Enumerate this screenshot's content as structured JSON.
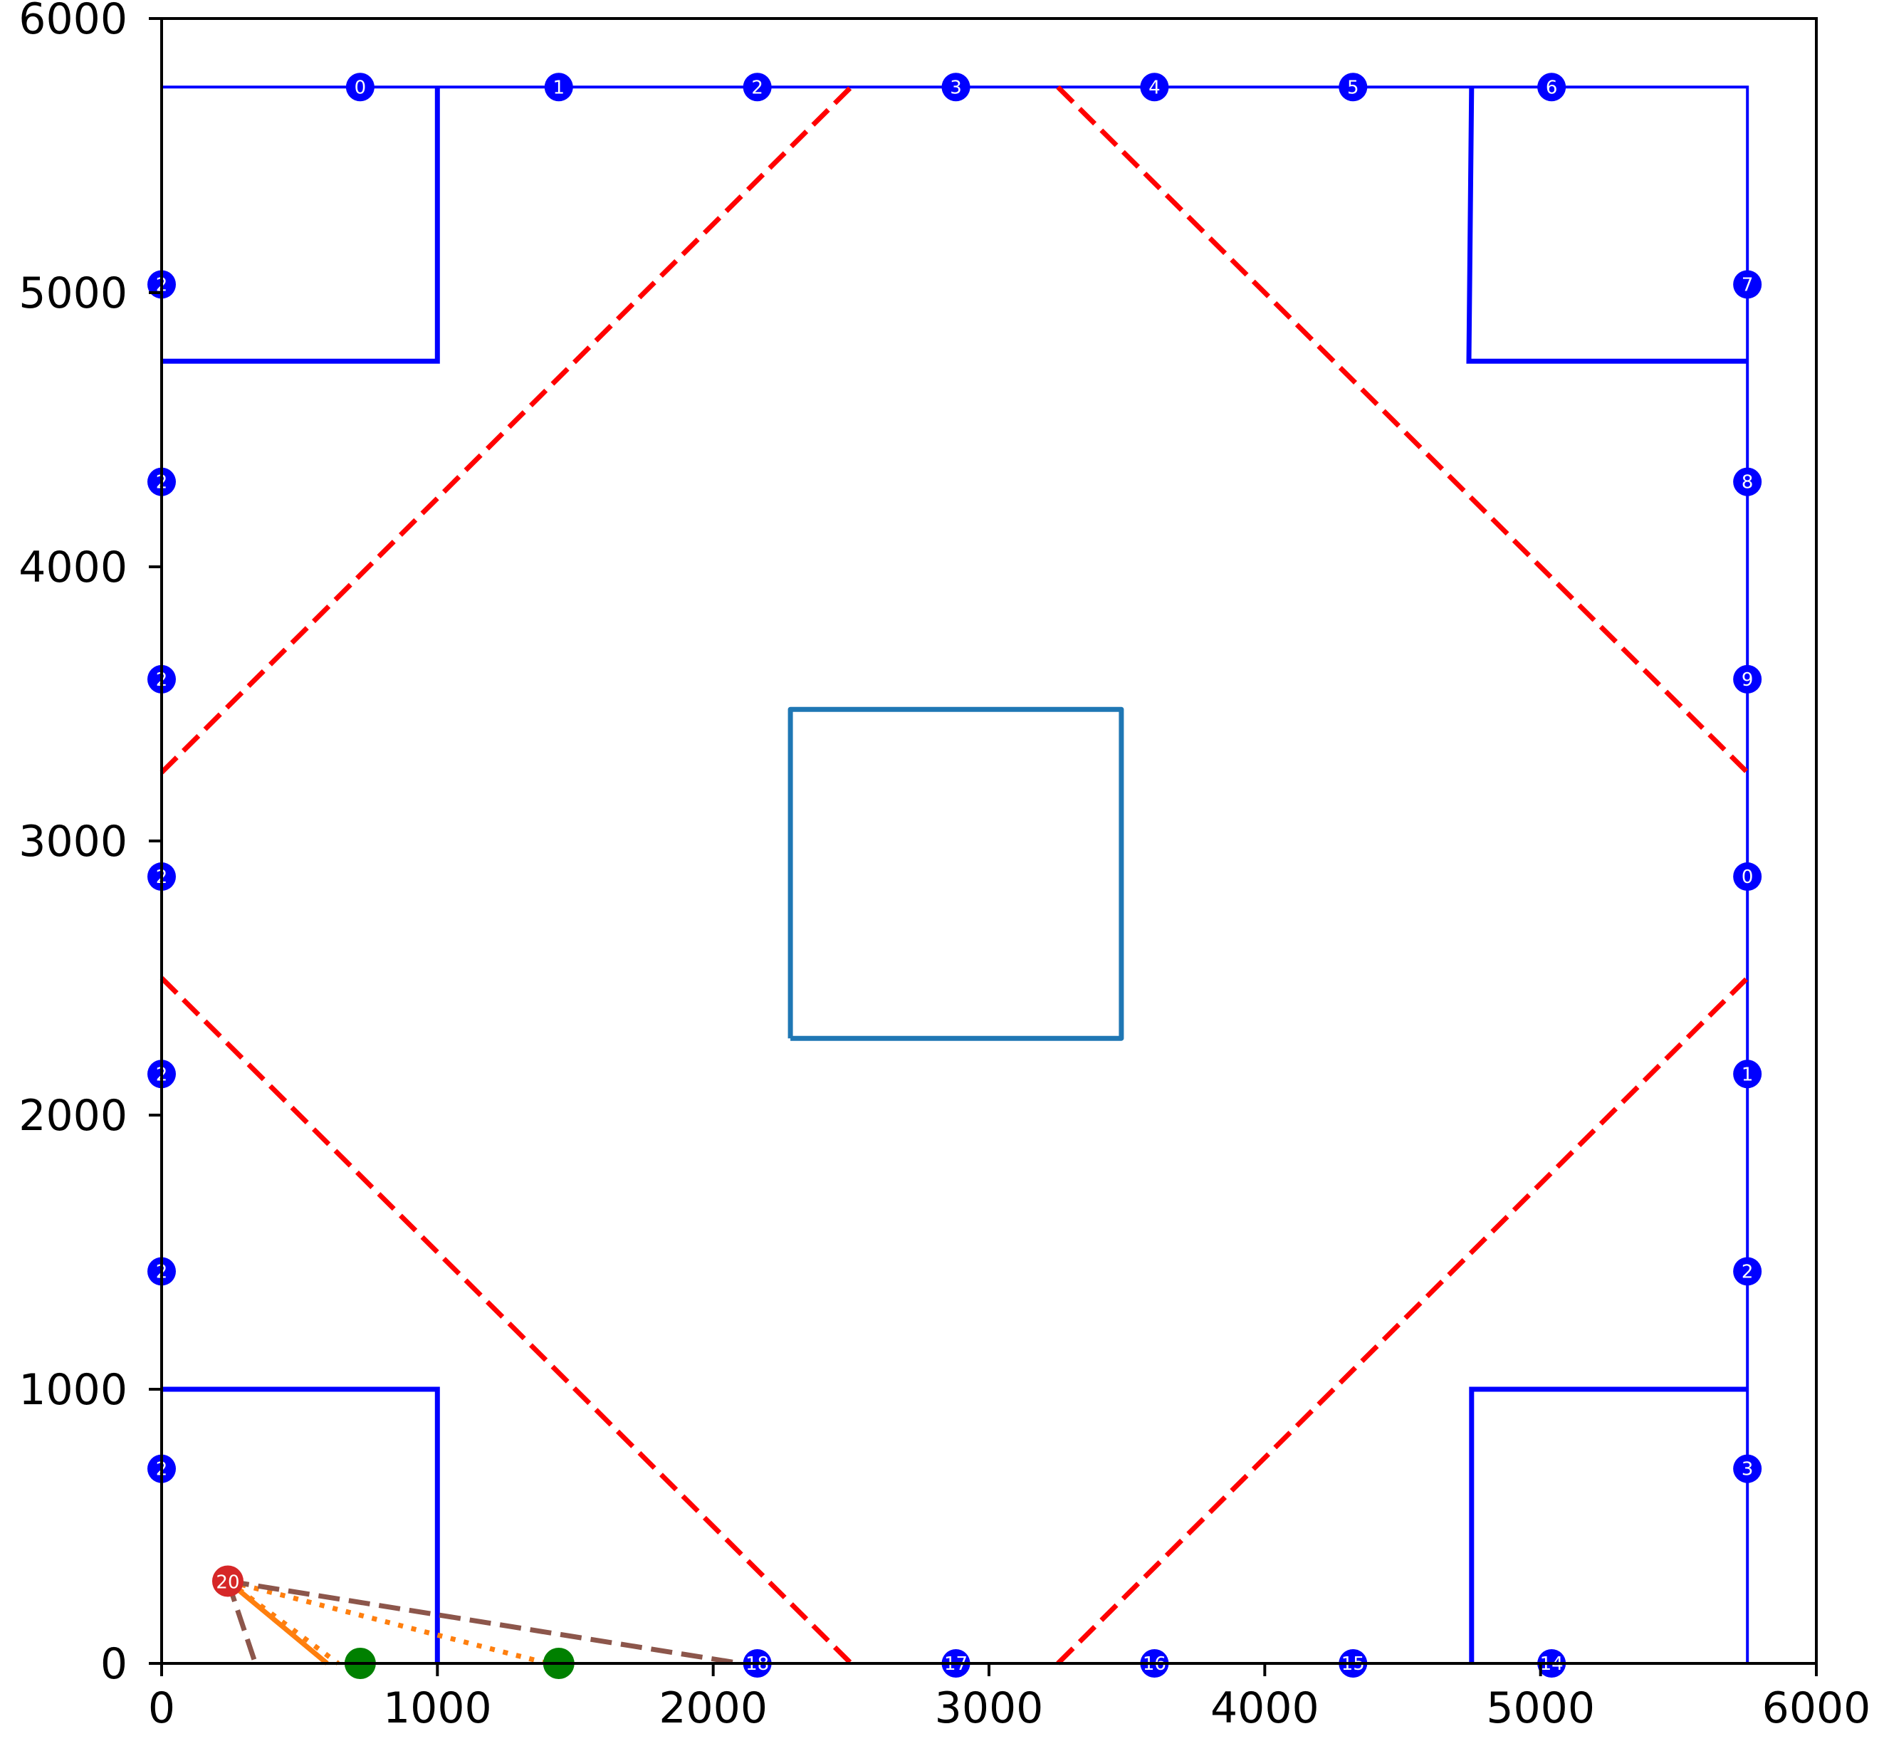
{
  "chart_data": {
    "type": "scatter",
    "title": "",
    "xlabel": "",
    "ylabel": "",
    "xlim": [
      0,
      6000
    ],
    "ylim": [
      0,
      6000
    ],
    "grid": false,
    "x_ticks": [
      "0",
      "1000",
      "2000",
      "3000",
      "4000",
      "5000",
      "6000"
    ],
    "y_ticks": [
      "0",
      "1000",
      "2000",
      "3000",
      "4000",
      "5000",
      "6000"
    ],
    "x_tick_values": [
      0,
      1000,
      2000,
      3000,
      4000,
      5000,
      6000
    ],
    "y_tick_values": [
      0,
      1000,
      2000,
      3000,
      4000,
      5000,
      6000
    ],
    "colors": {
      "boundary": "#0000ff",
      "center_box": "#1f77b4",
      "diamond": "#ff0000",
      "orange": "#ff7f0e",
      "brown": "#8c564b",
      "green": "#008000",
      "red_marker": "#d62728"
    },
    "boundary": [
      [
        0,
        0
      ],
      [
        5750,
        0
      ],
      [
        5750,
        5750
      ],
      [
        0,
        5750
      ],
      [
        0,
        0
      ]
    ],
    "corner_squares": [
      [
        [
          0,
          4750
        ],
        [
          1000,
          4750
        ],
        [
          1000,
          5750
        ]
      ],
      [
        [
          4750,
          5750
        ],
        [
          4740,
          4750
        ],
        [
          5750,
          4750
        ]
      ],
      [
        [
          0,
          1000
        ],
        [
          1000,
          1000
        ],
        [
          1000,
          0
        ]
      ],
      [
        [
          4750,
          0
        ],
        [
          4750,
          1000
        ],
        [
          5750,
          1000
        ]
      ]
    ],
    "center_box": [
      [
        2280,
        2280
      ],
      [
        3480,
        2280
      ],
      [
        3480,
        3480
      ],
      [
        2280,
        3480
      ],
      [
        2280,
        2280
      ]
    ],
    "diamond_lines": [
      [
        [
          0,
          3250
        ],
        [
          2500,
          5750
        ]
      ],
      [
        [
          3250,
          5750
        ],
        [
          5750,
          3250
        ]
      ],
      [
        [
          0,
          2500
        ],
        [
          2500,
          0
        ]
      ],
      [
        [
          3250,
          0
        ],
        [
          5750,
          2500
        ]
      ]
    ],
    "markers": [
      {
        "label": "0",
        "x": 720,
        "y": 5750
      },
      {
        "label": "1",
        "x": 1440,
        "y": 5750
      },
      {
        "label": "2",
        "x": 2160,
        "y": 5750
      },
      {
        "label": "3",
        "x": 2880,
        "y": 5750
      },
      {
        "label": "4",
        "x": 3600,
        "y": 5750
      },
      {
        "label": "5",
        "x": 4320,
        "y": 5750
      },
      {
        "label": "6",
        "x": 5040,
        "y": 5750
      },
      {
        "label": "7",
        "x": 5750,
        "y": 5030
      },
      {
        "label": "8",
        "x": 5750,
        "y": 4310
      },
      {
        "label": "9",
        "x": 5750,
        "y": 3590
      },
      {
        "label": "0",
        "x": 5750,
        "y": 2870
      },
      {
        "label": "1",
        "x": 5750,
        "y": 2150
      },
      {
        "label": "2",
        "x": 5750,
        "y": 1430
      },
      {
        "label": "3",
        "x": 5750,
        "y": 710
      },
      {
        "label": "14",
        "x": 5040,
        "y": 0
      },
      {
        "label": "15",
        "x": 4320,
        "y": 0
      },
      {
        "label": "16",
        "x": 3600,
        "y": 0
      },
      {
        "label": "17",
        "x": 2880,
        "y": 0
      },
      {
        "label": "18",
        "x": 2160,
        "y": 0
      },
      {
        "label": "2",
        "x": 0,
        "y": 710
      },
      {
        "label": "2",
        "x": 0,
        "y": 1430
      },
      {
        "label": "2",
        "x": 0,
        "y": 2150
      },
      {
        "label": "2",
        "x": 0,
        "y": 2870
      },
      {
        "label": "2",
        "x": 0,
        "y": 3590
      },
      {
        "label": "2",
        "x": 0,
        "y": 4310
      },
      {
        "label": "2",
        "x": 0,
        "y": 5030
      }
    ],
    "green_markers": [
      {
        "x": 720,
        "y": 0
      },
      {
        "x": 1440,
        "y": 0
      }
    ],
    "red_marker": {
      "label": "20",
      "x": 240,
      "y": 300
    },
    "paths": [
      {
        "style": "solid",
        "color": "orange",
        "points": [
          [
            240,
            300
          ],
          [
            600,
            0
          ]
        ]
      },
      {
        "style": "dotted",
        "color": "orange",
        "points": [
          [
            240,
            300
          ],
          [
            640,
            0
          ]
        ]
      },
      {
        "style": "dotted",
        "color": "orange",
        "points": [
          [
            240,
            300
          ],
          [
            1400,
            0
          ]
        ]
      },
      {
        "style": "dashed",
        "color": "brown",
        "points": [
          [
            240,
            300
          ],
          [
            2100,
            0
          ]
        ]
      },
      {
        "style": "dashed",
        "color": "brown",
        "points": [
          [
            240,
            300
          ],
          [
            340,
            0
          ]
        ]
      }
    ]
  }
}
